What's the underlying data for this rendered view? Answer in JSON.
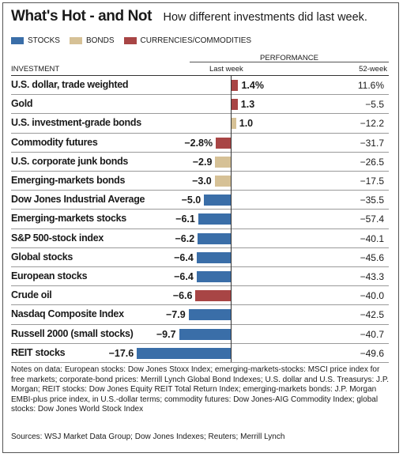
{
  "header": {
    "title": "What's Hot - and Not",
    "subtitle": "How different investments did last week."
  },
  "legend": [
    {
      "label": "STOCKS",
      "color": "#3a6ea8"
    },
    {
      "label": "BONDS",
      "color": "#d6c196"
    },
    {
      "label": "CURRENCIES/COMMODITIES",
      "color": "#a84545"
    }
  ],
  "columns": {
    "performance": "PERFORMANCE",
    "investment": "INVESTMENT",
    "last_week": "Last week",
    "week52": "52-week"
  },
  "chart_data": {
    "type": "bar",
    "title": "What's Hot - and Not",
    "subtitle": "How different investments did last week.",
    "orientation": "horizontal",
    "value_unit": "%",
    "xlim": [
      -17.6,
      1.4
    ],
    "rows": [
      {
        "name": "U.S. dollar, trade weighted",
        "last_week": 1.4,
        "last_week_label": "1.4%",
        "week52": "11.6%",
        "category": "CURRENCIES/COMMODITIES"
      },
      {
        "name": "Gold",
        "last_week": 1.3,
        "last_week_label": "1.3",
        "week52": "−5.5",
        "category": "CURRENCIES/COMMODITIES"
      },
      {
        "name": "U.S. investment-grade bonds",
        "last_week": 1.0,
        "last_week_label": "1.0",
        "week52": "−12.2",
        "category": "BONDS"
      },
      {
        "name": "Commodity futures",
        "last_week": -2.8,
        "last_week_label": "−2.8%",
        "week52": "−31.7",
        "category": "CURRENCIES/COMMODITIES"
      },
      {
        "name": "U.S. corporate junk bonds",
        "last_week": -2.9,
        "last_week_label": "−2.9",
        "week52": "−26.5",
        "category": "BONDS"
      },
      {
        "name": "Emerging-markets bonds",
        "last_week": -3.0,
        "last_week_label": "−3.0",
        "week52": "−17.5",
        "category": "BONDS"
      },
      {
        "name": "Dow Jones Industrial Average",
        "last_week": -5.0,
        "last_week_label": "−5.0",
        "week52": "−35.5",
        "category": "STOCKS"
      },
      {
        "name": "Emerging-markets stocks",
        "last_week": -6.1,
        "last_week_label": "−6.1",
        "week52": "−57.4",
        "category": "STOCKS"
      },
      {
        "name": "S&P 500-stock index",
        "last_week": -6.2,
        "last_week_label": "−6.2",
        "week52": "−40.1",
        "category": "STOCKS"
      },
      {
        "name": "Global stocks",
        "last_week": -6.4,
        "last_week_label": "−6.4",
        "week52": "−45.6",
        "category": "STOCKS"
      },
      {
        "name": "European stocks",
        "last_week": -6.4,
        "last_week_label": "−6.4",
        "week52": "−43.3",
        "category": "STOCKS"
      },
      {
        "name": "Crude oil",
        "last_week": -6.6,
        "last_week_label": "−6.6",
        "week52": "−40.0",
        "category": "CURRENCIES/COMMODITIES"
      },
      {
        "name": "Nasdaq Composite Index",
        "last_week": -7.9,
        "last_week_label": "−7.9",
        "week52": "−42.5",
        "category": "STOCKS"
      },
      {
        "name": "Russell 2000 (small stocks)",
        "last_week": -9.7,
        "last_week_label": "−9.7",
        "week52": "−40.7",
        "category": "STOCKS"
      },
      {
        "name": "REIT stocks",
        "last_week": -17.6,
        "last_week_label": "−17.6",
        "week52": "−49.6",
        "category": "STOCKS"
      }
    ]
  },
  "notes": "Notes on data: European stocks: Dow Jones Stoxx Index; emerging-markets-stocks: MSCI price index for free markets; corporate-bond prices: Merrill Lynch Global Bond Indexes; U.S. dollar and U.S. Treasurys: J.P. Morgan; REIT stocks: Dow Jones Equity REIT Total Return Index; emerging-markets bonds: J.P. Morgan EMBI-plus price index, in U.S.-dollar terms; commodity futures: Dow Jones-AIG Commodity Index; global stocks: Dow Jones World Stock Index",
  "sources": "Sources: WSJ Market Data Group; Dow Jones Indexes; Reuters; Merrill Lynch"
}
